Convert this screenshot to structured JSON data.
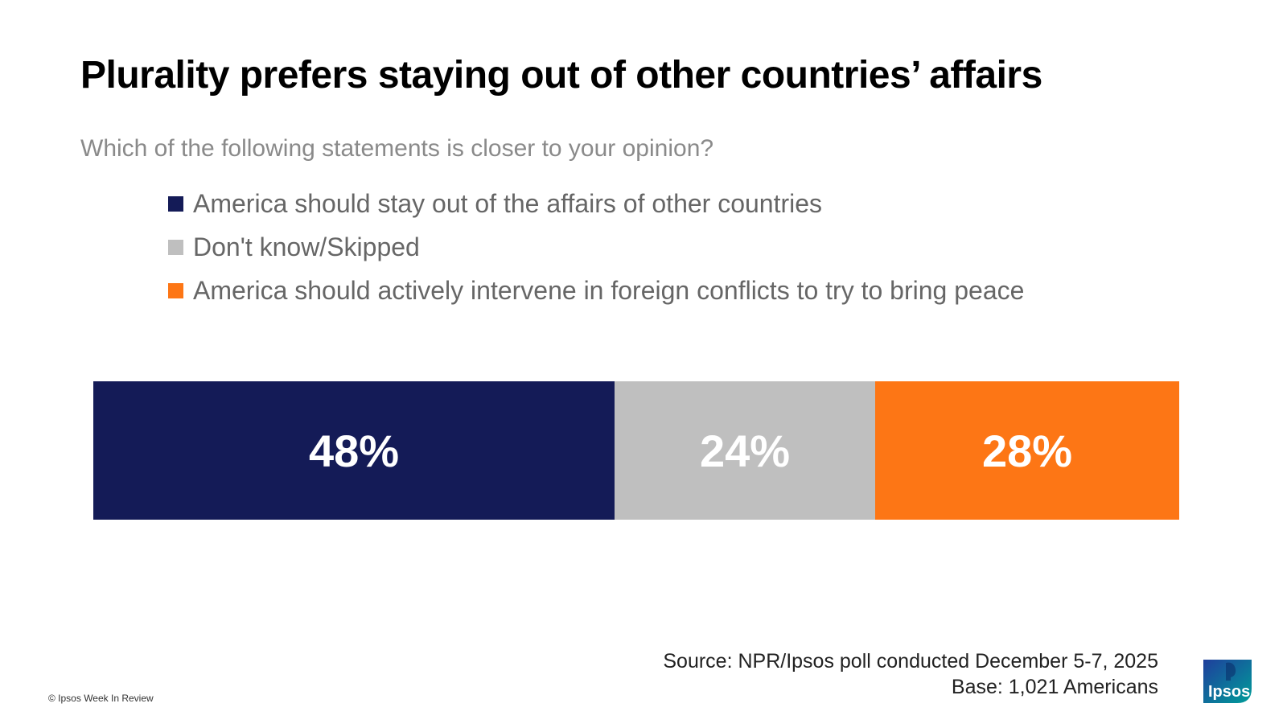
{
  "header": {
    "title": "Plurality prefers staying out of other countries’ affairs",
    "subtitle": "Which of the following statements is closer to your opinion?"
  },
  "chart_data": {
    "type": "bar",
    "orientation": "horizontal-stacked-100",
    "categories": [
      ""
    ],
    "series": [
      {
        "name": "America should stay out of the affairs of other countries",
        "values": [
          48
        ],
        "label": "48%",
        "color": "#141b57"
      },
      {
        "name": "Don't know/Skipped",
        "values": [
          24
        ],
        "label": "24%",
        "color": "#bfbfbf"
      },
      {
        "name": "America should actively intervene in foreign conflicts to try to bring peace",
        "values": [
          28
        ],
        "label": "28%",
        "color": "#fd7615"
      }
    ],
    "title": "Plurality prefers staying out of other countries’ affairs",
    "xlabel": "",
    "ylabel": "",
    "xlim": [
      0,
      100
    ],
    "grid": false,
    "legend_position": "top"
  },
  "footer": {
    "source_line1": "Source: NPR/Ipsos poll conducted December 5-7, 2025",
    "source_line2": "Base: 1,021 Americans",
    "copyright": "© Ipsos Week In Review",
    "logo_text": "Ipsos",
    "logo_color": "#009d9a",
    "logo_dark": "#1f3e9c"
  }
}
